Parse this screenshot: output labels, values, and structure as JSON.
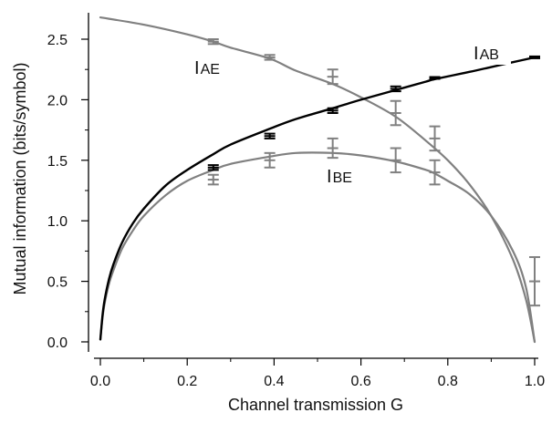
{
  "chart_data": {
    "type": "line",
    "xlabel": "Channel transmission G",
    "ylabel": "Mutual information (bits/symbol)",
    "xlim": [
      0.0,
      1.0
    ],
    "ylim": [
      0.0,
      2.75
    ],
    "x_ticks": [
      "0.0",
      "0.2",
      "0.4",
      "0.6",
      "0.8",
      "1.0"
    ],
    "y_ticks": [
      "0.0",
      "0.5",
      "1.0",
      "1.5",
      "2.0",
      "2.5"
    ],
    "grid": false,
    "colors": {
      "IAB": "#000000",
      "IAE": "#808080",
      "IBE": "#808080"
    },
    "curves": [
      {
        "name": "I_AB",
        "label_main": "I",
        "label_sub": "AB",
        "x": [
          0,
          0.005,
          0.01,
          0.02,
          0.03,
          0.05,
          0.075,
          0.1,
          0.15,
          0.2,
          0.26,
          0.3,
          0.39,
          0.45,
          0.535,
          0.6,
          0.68,
          0.75,
          0.77,
          0.85,
          0.9,
          0.95,
          1.0
        ],
        "y": [
          0.02,
          0.22,
          0.35,
          0.52,
          0.64,
          0.82,
          0.98,
          1.1,
          1.29,
          1.42,
          1.55,
          1.63,
          1.76,
          1.84,
          1.93,
          2.0,
          2.08,
          2.15,
          2.17,
          2.23,
          2.27,
          2.31,
          2.35
        ]
      },
      {
        "name": "I_AE",
        "label_main": "I",
        "label_sub": "AE",
        "x": [
          0,
          0.1,
          0.2,
          0.26,
          0.3,
          0.39,
          0.45,
          0.535,
          0.6,
          0.68,
          0.75,
          0.8,
          0.85,
          0.9,
          0.95,
          0.98,
          1.0
        ],
        "y": [
          2.68,
          2.62,
          2.54,
          2.48,
          2.43,
          2.34,
          2.24,
          2.13,
          2.02,
          1.86,
          1.66,
          1.5,
          1.3,
          1.04,
          0.68,
          0.35,
          0.0
        ]
      },
      {
        "name": "I_BE",
        "label_main": "I",
        "label_sub": "BE",
        "x": [
          0,
          0.005,
          0.01,
          0.02,
          0.03,
          0.05,
          0.075,
          0.1,
          0.15,
          0.2,
          0.26,
          0.3,
          0.39,
          0.45,
          0.535,
          0.6,
          0.68,
          0.75,
          0.77,
          0.8,
          0.85,
          0.9,
          0.95,
          0.98,
          1.0
        ],
        "y": [
          0.02,
          0.2,
          0.32,
          0.48,
          0.59,
          0.77,
          0.92,
          1.04,
          1.21,
          1.33,
          1.42,
          1.47,
          1.53,
          1.56,
          1.56,
          1.54,
          1.49,
          1.42,
          1.39,
          1.33,
          1.22,
          1.04,
          0.75,
          0.45,
          0.0
        ]
      }
    ],
    "series": [
      {
        "name": "I_AB",
        "x": [
          0.26,
          0.39,
          0.535,
          0.68,
          0.77,
          1.0
        ],
        "y": [
          1.44,
          1.7,
          1.91,
          2.09,
          2.18,
          2.35
        ],
        "yerr": [
          0.02,
          0.02,
          0.02,
          0.02,
          0.015,
          0.01
        ]
      },
      {
        "name": "I_AE",
        "x": [
          0.26,
          0.39,
          0.535,
          0.68,
          0.77
        ],
        "y": [
          2.48,
          2.35,
          2.19,
          1.89,
          1.68
        ],
        "yerr": [
          0.02,
          0.02,
          0.06,
          0.1,
          0.1
        ]
      },
      {
        "name": "I_BE",
        "x": [
          0.26,
          0.39,
          0.535,
          0.68,
          0.77,
          1.0
        ],
        "y": [
          1.34,
          1.5,
          1.6,
          1.5,
          1.4,
          0.5
        ],
        "yerr": [
          0.04,
          0.06,
          0.08,
          0.1,
          0.1,
          0.2
        ]
      }
    ]
  }
}
